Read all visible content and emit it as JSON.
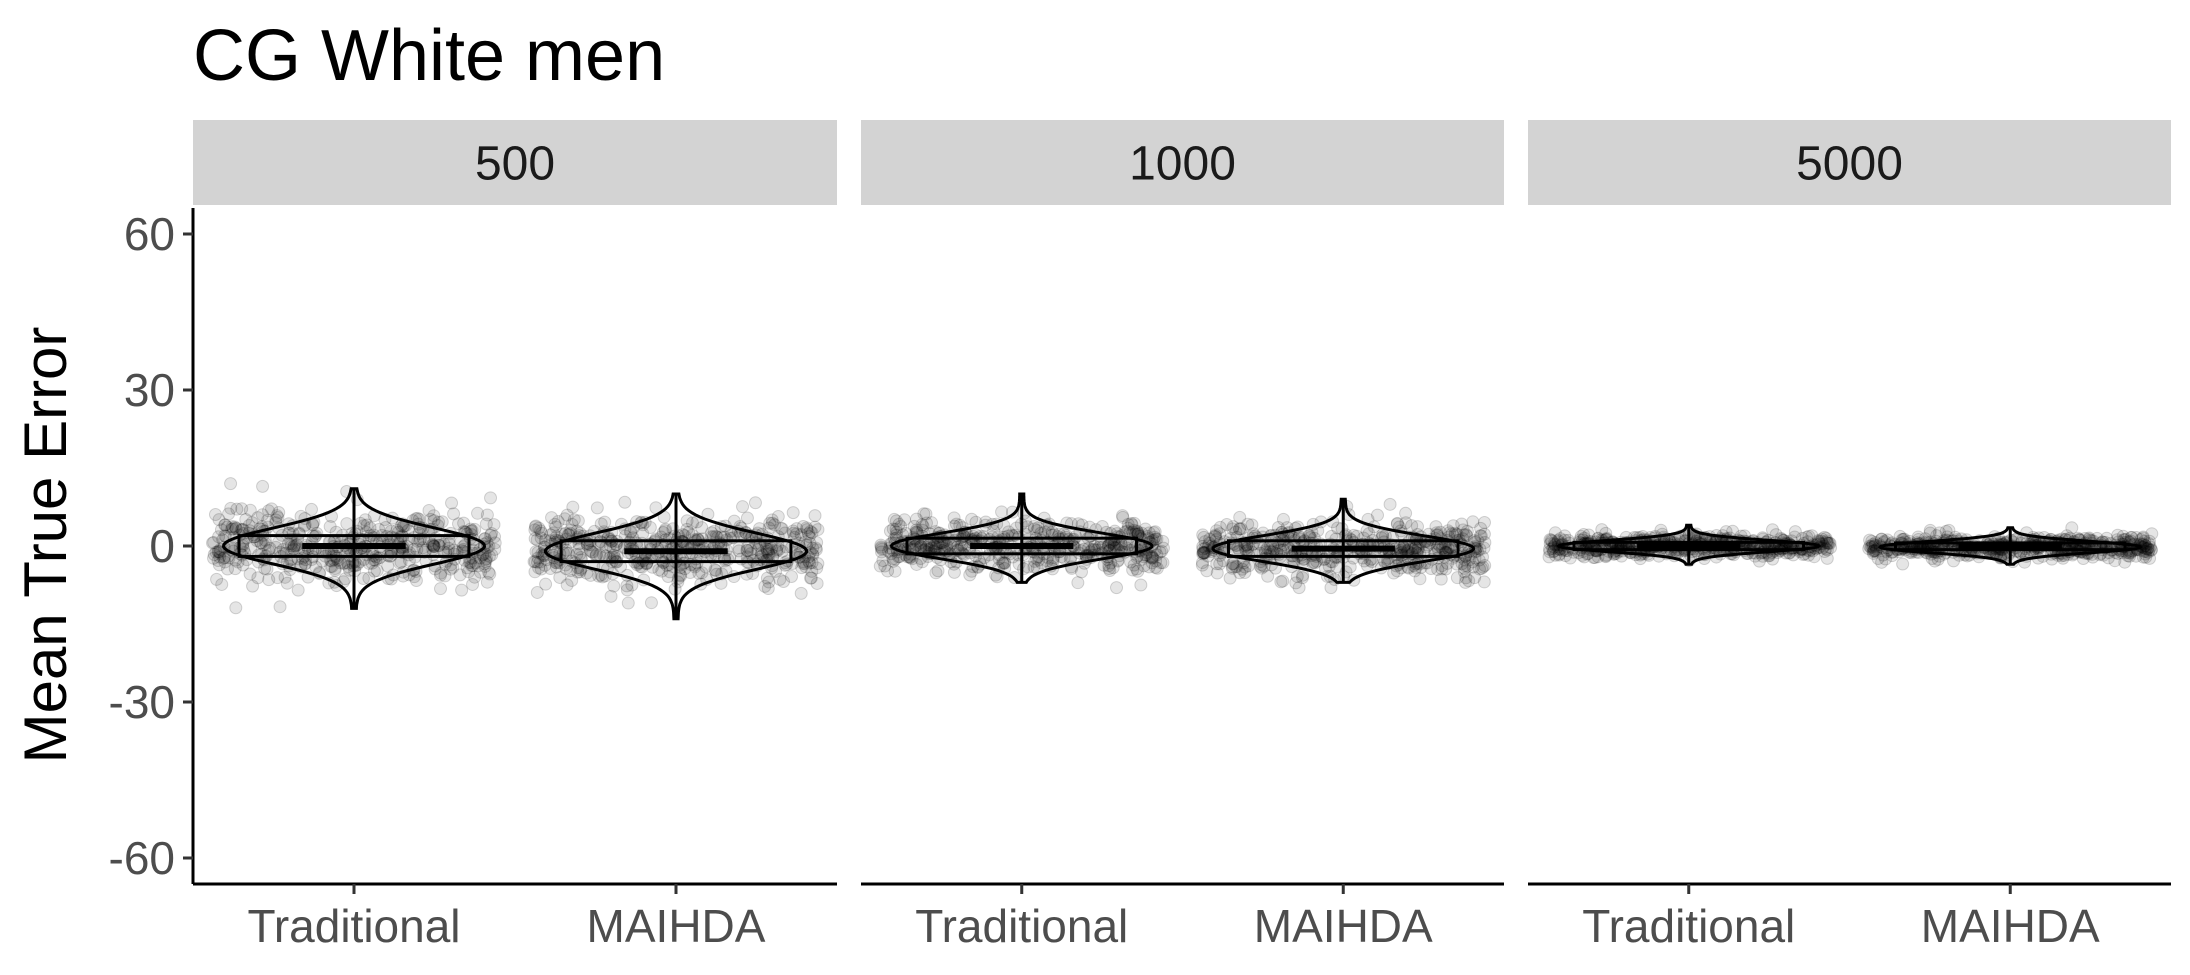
{
  "chart_data": {
    "type": "violin",
    "title": "CG White men",
    "ylabel": "Mean True Error",
    "xlabel": "",
    "ylim": [
      -65,
      65
    ],
    "yticks": [
      60,
      30,
      0,
      -30,
      -60
    ],
    "ytick_labels": [
      "60",
      "30",
      "0",
      "-30",
      "-60"
    ],
    "categories": [
      "Traditional",
      "MAIHDA"
    ],
    "grid": false,
    "legend": "none",
    "point_color": "#000000",
    "facets": [
      {
        "label": "500",
        "groups": [
          {
            "category": "Traditional",
            "min": -12,
            "q1": -2,
            "median": 0,
            "q3": 2,
            "max": 11,
            "spread": 3.5,
            "outlier_range": [
              -12,
              12
            ]
          },
          {
            "category": "MAIHDA",
            "min": -14,
            "q1": -3,
            "median": -1,
            "q3": 1,
            "max": 10,
            "spread": 3.5,
            "outlier_range": [
              -14,
              10
            ]
          }
        ]
      },
      {
        "label": "1000",
        "groups": [
          {
            "category": "Traditional",
            "min": -7,
            "q1": -1.5,
            "median": 0,
            "q3": 1.5,
            "max": 10,
            "spread": 2.5,
            "outlier_range": [
              -8,
              10
            ]
          },
          {
            "category": "MAIHDA",
            "min": -7,
            "q1": -2,
            "median": -0.5,
            "q3": 1,
            "max": 9,
            "spread": 2.5,
            "outlier_range": [
              -8,
              9
            ]
          }
        ]
      },
      {
        "label": "5000",
        "groups": [
          {
            "category": "Traditional",
            "min": -3.5,
            "q1": -0.7,
            "median": 0,
            "q3": 0.7,
            "max": 4,
            "spread": 1.1,
            "outlier_range": [
              -3.5,
              4
            ]
          },
          {
            "category": "MAIHDA",
            "min": -3.5,
            "q1": -0.7,
            "median": -0.2,
            "q3": 0.6,
            "max": 3.5,
            "spread": 1.1,
            "outlier_range": [
              -3.5,
              3.5
            ]
          }
        ]
      }
    ]
  }
}
